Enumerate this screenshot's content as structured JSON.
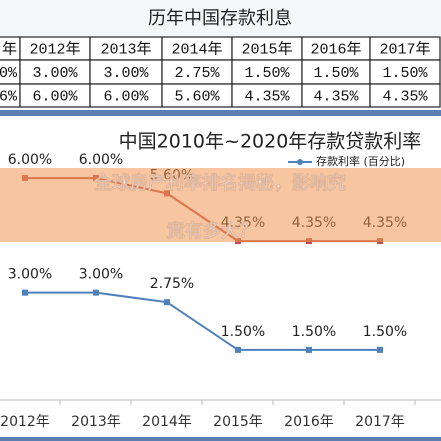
{
  "table": {
    "title": "历年中国存款利息",
    "header": [
      "年",
      "2012年",
      "2013年",
      "2014年",
      "2015年",
      "2016年",
      "2017年"
    ],
    "rows": [
      [
        "0%",
        "3.00%",
        "3.00%",
        "2.75%",
        "1.50%",
        "1.50%",
        "1.50%"
      ],
      [
        "6%",
        "6.00%",
        "6.00%",
        "5.60%",
        "4.35%",
        "4.35%",
        "4.35%"
      ]
    ]
  },
  "overlay": {
    "lines": [
      "全球房产利率排名揭秘，影响究",
      "竟有多大？"
    ]
  },
  "chart_data": {
    "type": "line",
    "title": "中国2010年~2020年存款贷款利率",
    "categories": [
      "2012年",
      "2013年",
      "2014年",
      "2015年",
      "2016年",
      "2017年"
    ],
    "ylim": [
      1,
      6.5
    ],
    "series": [
      {
        "name": "存款利率 (百分比)",
        "color": "#4f81bd",
        "values": [
          3,
          3,
          2.75,
          1.5,
          1.5,
          1.5
        ],
        "value_labels": [
          "3.00%",
          "3.00%",
          "2.75%",
          "1.50%",
          "1.50%",
          "1.50%"
        ]
      },
      {
        "color": "#c0504d",
        "values": [
          6,
          6,
          5.6,
          4.35,
          4.35,
          4.35
        ],
        "value_labels": [
          "6.00%",
          "6.00%",
          "5.60%",
          "4.35%",
          "4.35%",
          "4.35%"
        ]
      }
    ]
  }
}
